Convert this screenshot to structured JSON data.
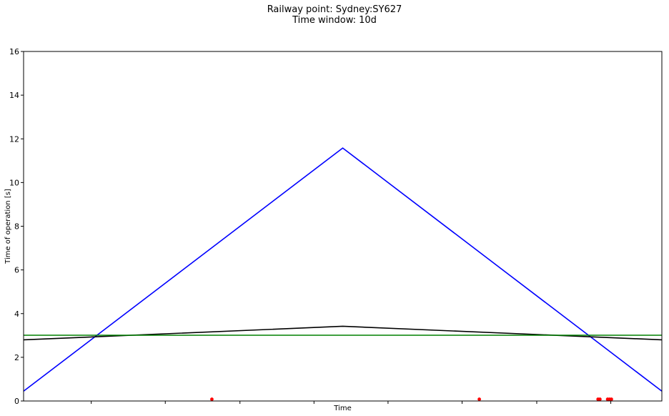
{
  "window": {
    "title_line1": "Railway point: Sydney:SY627",
    "title_line2": "Time window: 10d"
  },
  "chart_data": {
    "type": "line",
    "title": "Railway point: Sydney:SY627",
    "subtitle": "Time window: 10d",
    "xlabel": "Time",
    "ylabel": "Time of operation [s]",
    "xlim": [
      0,
      1
    ],
    "ylim": [
      0,
      16
    ],
    "yticks": [
      0,
      2,
      4,
      6,
      8,
      10,
      12,
      14,
      16
    ],
    "xticks": [
      0.106,
      0.222,
      0.339,
      0.455,
      0.571,
      0.687,
      0.804,
      0.92
    ],
    "grid": false,
    "series": [
      {
        "type": "line",
        "color": "#0000ff",
        "x": [
          0,
          0.5,
          1
        ],
        "y": [
          0.45,
          11.58,
          0.45
        ]
      },
      {
        "type": "line",
        "color": "#000000",
        "x": [
          0,
          0.5,
          1
        ],
        "y": [
          2.8,
          3.42,
          2.8
        ]
      },
      {
        "type": "line",
        "color": "#008000",
        "x": [
          0,
          1
        ],
        "y": [
          3.01,
          3.01
        ]
      },
      {
        "type": "scatter",
        "color": "#ff0000",
        "x": [
          0.295,
          0.714,
          0.9,
          0.903,
          0.915,
          0.918,
          0.921
        ],
        "y": [
          0.08,
          0.08,
          0.08,
          0.08,
          0.08,
          0.08,
          0.08
        ]
      }
    ]
  }
}
